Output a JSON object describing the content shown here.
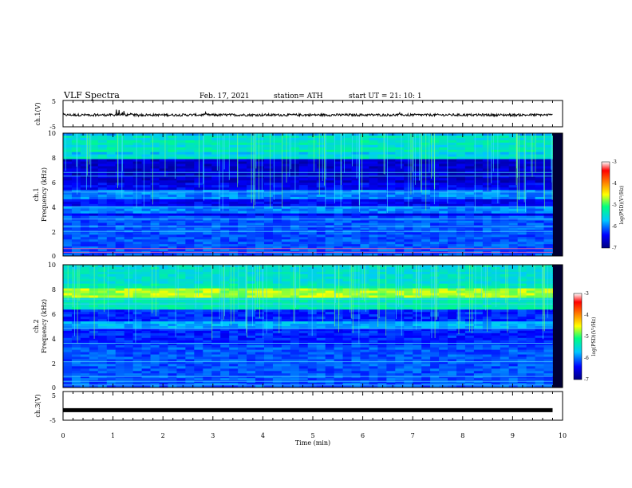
{
  "header": {
    "title": "VLF Spectra",
    "date": "Feb. 17, 2021",
    "station": "station= ATH",
    "start": "start  UT =   21: 10: 1"
  },
  "colors": {
    "spectrogram_background": "#000033",
    "waveform_trace": "#000000",
    "colorbar_stops": [
      "#000080",
      "#0000ff",
      "#00c8ff",
      "#00ff80",
      "#ffff00",
      "#ff8000",
      "#ff0000",
      "#ffffff"
    ]
  },
  "chart_data": [
    {
      "type": "line",
      "panel": "ch1-waveform",
      "ylabel": "ch.1(V)",
      "ylim": [
        -5,
        5
      ],
      "xlim": [
        0,
        10
      ],
      "ytick_labels": [
        "5",
        "-5"
      ],
      "series": [
        {
          "x": [
            0,
            9.8
          ],
          "y": [
            -0.5,
            -0.5
          ]
        }
      ]
    },
    {
      "type": "heatmap",
      "panel": "ch1-spectrogram",
      "ylabel": "ch.1\nFrequency (kHz)",
      "ylim": [
        0,
        10
      ],
      "xlim": [
        0,
        10
      ],
      "ytick_labels": [
        "0",
        "2",
        "4",
        "6",
        "8",
        "10"
      ],
      "colorbar": {
        "label": "log(PSD)(V²/Hz)",
        "range": [
          -7,
          -3
        ],
        "tick_labels": [
          "-3",
          "-4",
          "-5",
          "-6",
          "-7"
        ]
      }
    },
    {
      "type": "heatmap",
      "panel": "ch2-spectrogram",
      "ylabel": "ch.2\nFrequency (kHz)",
      "ylim": [
        0,
        10
      ],
      "xlim": [
        0,
        10
      ],
      "ytick_labels": [
        "0",
        "2",
        "4",
        "6",
        "8",
        "10"
      ],
      "colorbar": {
        "label": "log(PSD)(V²/Hz)",
        "range": [
          -7,
          -3
        ],
        "tick_labels": [
          "-3",
          "-4",
          "-5",
          "-6",
          "-7"
        ]
      }
    },
    {
      "type": "line",
      "panel": "ch3-waveform",
      "ylabel": "ch.3(V)",
      "ylim": [
        -5,
        5
      ],
      "xlim": [
        0,
        10
      ],
      "ytick_labels": [
        "5",
        "-5"
      ],
      "series": [
        {
          "x": [
            0,
            9.8
          ],
          "y": [
            -1.5,
            -1.5
          ]
        }
      ]
    }
  ],
  "x_axis": {
    "label": "Time (min)",
    "tick_labels": [
      "0",
      "1",
      "2",
      "3",
      "4",
      "5",
      "6",
      "7",
      "8",
      "9",
      "10"
    ]
  }
}
